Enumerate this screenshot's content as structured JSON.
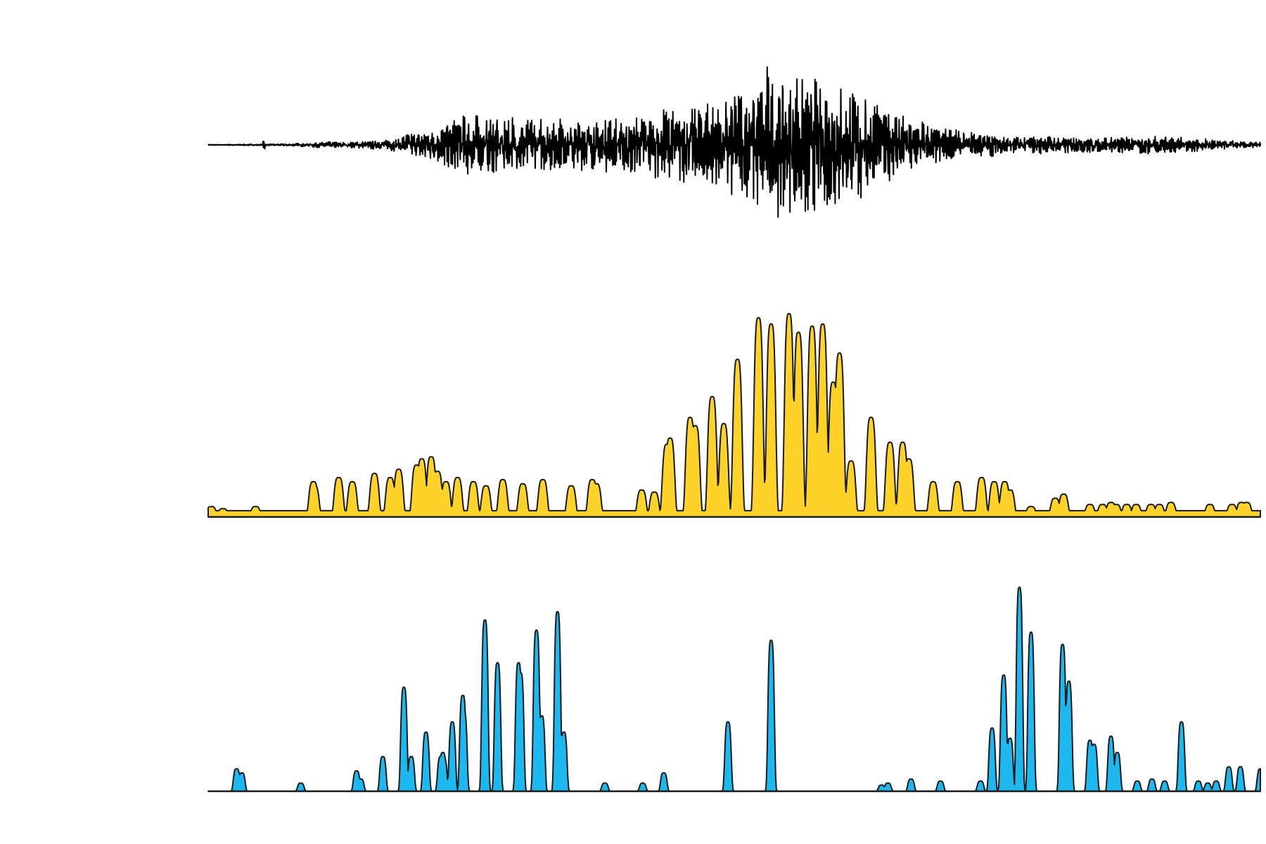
{
  "chart_data": [
    {
      "type": "line",
      "title": "",
      "xlabel": "",
      "ylabel": "",
      "grid": false,
      "legend": "none",
      "xlim": [
        0,
        1
      ],
      "ylim": [
        -1,
        1
      ],
      "series": [
        {
          "color": "#000000",
          "fill": "none",
          "envelope_knots": [
            [
              0.0,
              0.004
            ],
            [
              0.07,
              0.01
            ],
            [
              0.11,
              0.03
            ],
            [
              0.17,
              0.05
            ],
            [
              0.19,
              0.12
            ],
            [
              0.21,
              0.18
            ],
            [
              0.25,
              0.34
            ],
            [
              0.3,
              0.3
            ],
            [
              0.35,
              0.28
            ],
            [
              0.4,
              0.3
            ],
            [
              0.43,
              0.36
            ],
            [
              0.47,
              0.46
            ],
            [
              0.5,
              0.56
            ],
            [
              0.53,
              0.72
            ],
            [
              0.55,
              0.8
            ],
            [
              0.58,
              0.72
            ],
            [
              0.62,
              0.6
            ],
            [
              0.65,
              0.36
            ],
            [
              0.7,
              0.18
            ],
            [
              0.76,
              0.1
            ],
            [
              0.85,
              0.08
            ],
            [
              0.9,
              0.1
            ],
            [
              0.95,
              0.06
            ],
            [
              1.0,
              0.03
            ]
          ],
          "peak_spikes": [
            [
              0.053,
              0.1
            ],
            [
              0.201,
              0.3
            ],
            [
              0.222,
              0.36
            ],
            [
              0.255,
              0.5
            ],
            [
              0.277,
              0.5
            ],
            [
              0.306,
              0.42
            ],
            [
              0.407,
              0.5
            ],
            [
              0.445,
              0.64
            ],
            [
              0.475,
              0.88
            ],
            [
              0.531,
              1.0
            ],
            [
              0.553,
              0.64
            ],
            [
              0.593,
              0.7
            ],
            [
              0.629,
              0.5
            ],
            [
              0.67,
              0.3
            ],
            [
              0.91,
              0.18
            ]
          ]
        }
      ]
    },
    {
      "type": "area",
      "title": "",
      "xlabel": "",
      "ylabel": "",
      "grid": false,
      "legend": "none",
      "xlim": [
        0,
        1
      ],
      "ylim": [
        0,
        1
      ],
      "series": [
        {
          "color": "#FDD32A",
          "stroke": "#1a1a1a",
          "x": [
            0.003,
            0.014,
            0.045,
            0.1,
            0.101,
            0.124,
            0.137,
            0.158,
            0.173,
            0.181,
            0.198,
            0.203,
            0.212,
            0.218,
            0.226,
            0.237,
            0.252,
            0.264,
            0.28,
            0.299,
            0.318,
            0.345,
            0.365,
            0.369,
            0.412,
            0.424,
            0.436,
            0.439,
            0.458,
            0.463,
            0.479,
            0.49,
            0.503,
            0.523,
            0.535,
            0.552,
            0.561,
            0.574,
            0.584,
            0.594,
            0.6,
            0.611,
            0.63,
            0.648,
            0.66,
            0.666,
            0.689,
            0.712,
            0.735,
            0.747,
            0.757,
            0.762,
            0.782,
            0.805,
            0.813,
            0.838,
            0.85,
            0.858,
            0.863,
            0.873,
            0.873,
            0.882,
            0.896,
            0.904,
            0.915,
            0.952,
            0.973,
            0.982,
            0.987
          ],
          "values": [
            0.05,
            0.04,
            0.05,
            0.17,
            0.15,
            0.19,
            0.17,
            0.21,
            0.19,
            0.23,
            0.25,
            0.28,
            0.29,
            0.22,
            0.17,
            0.19,
            0.17,
            0.15,
            0.18,
            0.16,
            0.18,
            0.15,
            0.18,
            0.16,
            0.13,
            0.12,
            0.35,
            0.38,
            0.48,
            0.44,
            0.58,
            0.45,
            0.76,
            0.96,
            0.93,
            0.98,
            0.89,
            0.92,
            0.93,
            0.65,
            0.79,
            0.27,
            0.48,
            0.36,
            0.36,
            0.28,
            0.17,
            0.17,
            0.19,
            0.17,
            0.17,
            0.13,
            0.05,
            0.09,
            0.11,
            0.06,
            0.06,
            0.07,
            0.06,
            0.06,
            0.06,
            0.06,
            0.06,
            0.06,
            0.07,
            0.06,
            0.06,
            0.07,
            0.07
          ]
        }
      ]
    },
    {
      "type": "area",
      "title": "",
      "xlabel": "",
      "ylabel": "",
      "grid": false,
      "legend": "none",
      "xlim": [
        0,
        1
      ],
      "ylim": [
        0,
        1
      ],
      "series": [
        {
          "color": "#1EB8F0",
          "stroke": "#1a1a1a",
          "x": [
            0.027,
            0.032,
            0.088,
            0.141,
            0.145,
            0.166,
            0.186,
            0.193,
            0.207,
            0.221,
            0.223,
            0.224,
            0.232,
            0.242,
            0.243,
            0.263,
            0.275,
            0.295,
            0.297,
            0.312,
            0.317,
            0.332,
            0.338,
            0.377,
            0.413,
            0.433,
            0.494,
            0.535,
            0.64,
            0.646,
            0.668,
            0.696,
            0.734,
            0.745,
            0.756,
            0.762,
            0.771,
            0.782,
            0.812,
            0.818,
            0.838,
            0.842,
            0.858,
            0.864,
            0.883,
            0.897,
            0.909,
            0.925,
            0.941,
            0.95,
            0.958,
            0.97,
            0.981,
            1.0
          ],
          "values": [
            0.11,
            0.09,
            0.04,
            0.1,
            0.06,
            0.17,
            0.51,
            0.17,
            0.29,
            0.17,
            0.19,
            0.16,
            0.34,
            0.47,
            0.39,
            0.84,
            0.63,
            0.63,
            0.58,
            0.79,
            0.37,
            0.88,
            0.29,
            0.04,
            0.04,
            0.09,
            0.34,
            0.74,
            0.03,
            0.04,
            0.06,
            0.05,
            0.05,
            0.31,
            0.57,
            0.26,
            1.0,
            0.78,
            0.72,
            0.54,
            0.25,
            0.23,
            0.27,
            0.19,
            0.05,
            0.06,
            0.05,
            0.34,
            0.05,
            0.04,
            0.05,
            0.12,
            0.12,
            0.11
          ]
        }
      ]
    }
  ]
}
